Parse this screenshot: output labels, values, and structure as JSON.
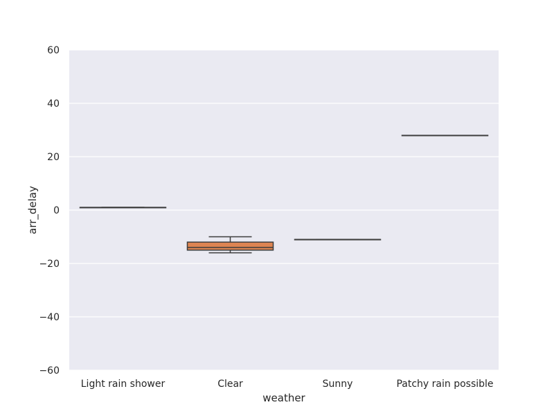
{
  "chart_data": {
    "type": "box",
    "xlabel": "weather",
    "ylabel": "arr_delay",
    "ylim": [
      -60,
      60
    ],
    "yticks": [
      -60,
      -40,
      -20,
      0,
      20,
      40,
      60
    ],
    "grid": true,
    "categories": [
      "Light rain shower",
      "Clear",
      "Sunny",
      "Patchy rain possible"
    ],
    "boxes": [
      {
        "category": "Light rain shower",
        "min": 1,
        "q1": 1,
        "median": 1,
        "q3": 1,
        "max": 1,
        "color": "#4c72b0"
      },
      {
        "category": "Clear",
        "min": -16,
        "q1": -15,
        "median": -14,
        "q3": -12,
        "max": -10,
        "color": "#dd8452"
      },
      {
        "category": "Sunny",
        "min": -11,
        "q1": -11,
        "median": -11,
        "q3": -11,
        "max": -11,
        "color": "#55a868"
      },
      {
        "category": "Patchy rain possible",
        "min": 28,
        "q1": 28,
        "median": 28,
        "q3": 28,
        "max": 28,
        "color": "#c44e52"
      }
    ],
    "colors": {
      "plot_background": "#eaeaf2",
      "grid": "#ffffff",
      "line": "#3d3d3d"
    }
  }
}
